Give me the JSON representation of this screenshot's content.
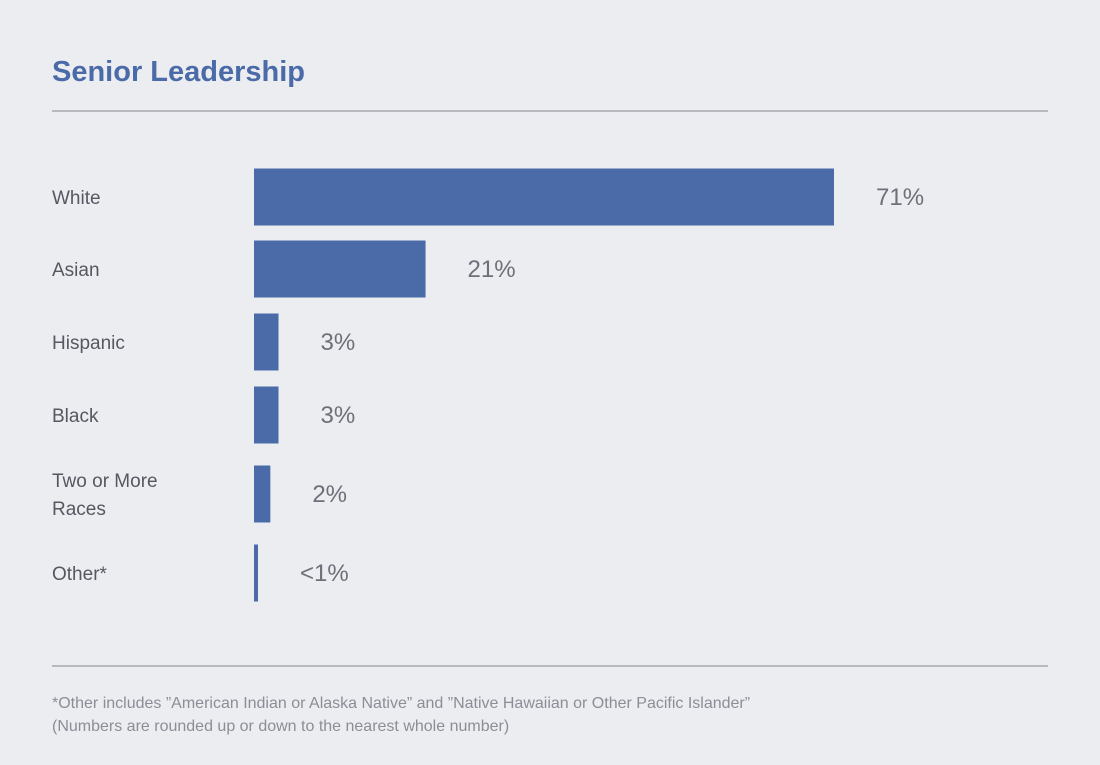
{
  "chart_data": {
    "type": "bar",
    "orientation": "horizontal",
    "title": "Senior Leadership",
    "categories": [
      "White",
      "Asian",
      "Hispanic",
      "Black",
      "Two or More Races",
      "Other*"
    ],
    "values": [
      71,
      21,
      3,
      3,
      2,
      0.4
    ],
    "value_labels": [
      "71%",
      "21%",
      "3%",
      "3%",
      "2%",
      "<1%"
    ],
    "xlim": [
      0,
      71
    ],
    "xlabel": "",
    "ylabel": "",
    "grid": false,
    "legend": "none",
    "color": "#4a6aa8"
  },
  "footnotes": {
    "line1": "*Other includes ”American Indian or Alaska Native” and ”Native Hawaiian or Other Pacific Islander”",
    "line2": "(Numbers are rounded up or down to the nearest whole number)"
  }
}
